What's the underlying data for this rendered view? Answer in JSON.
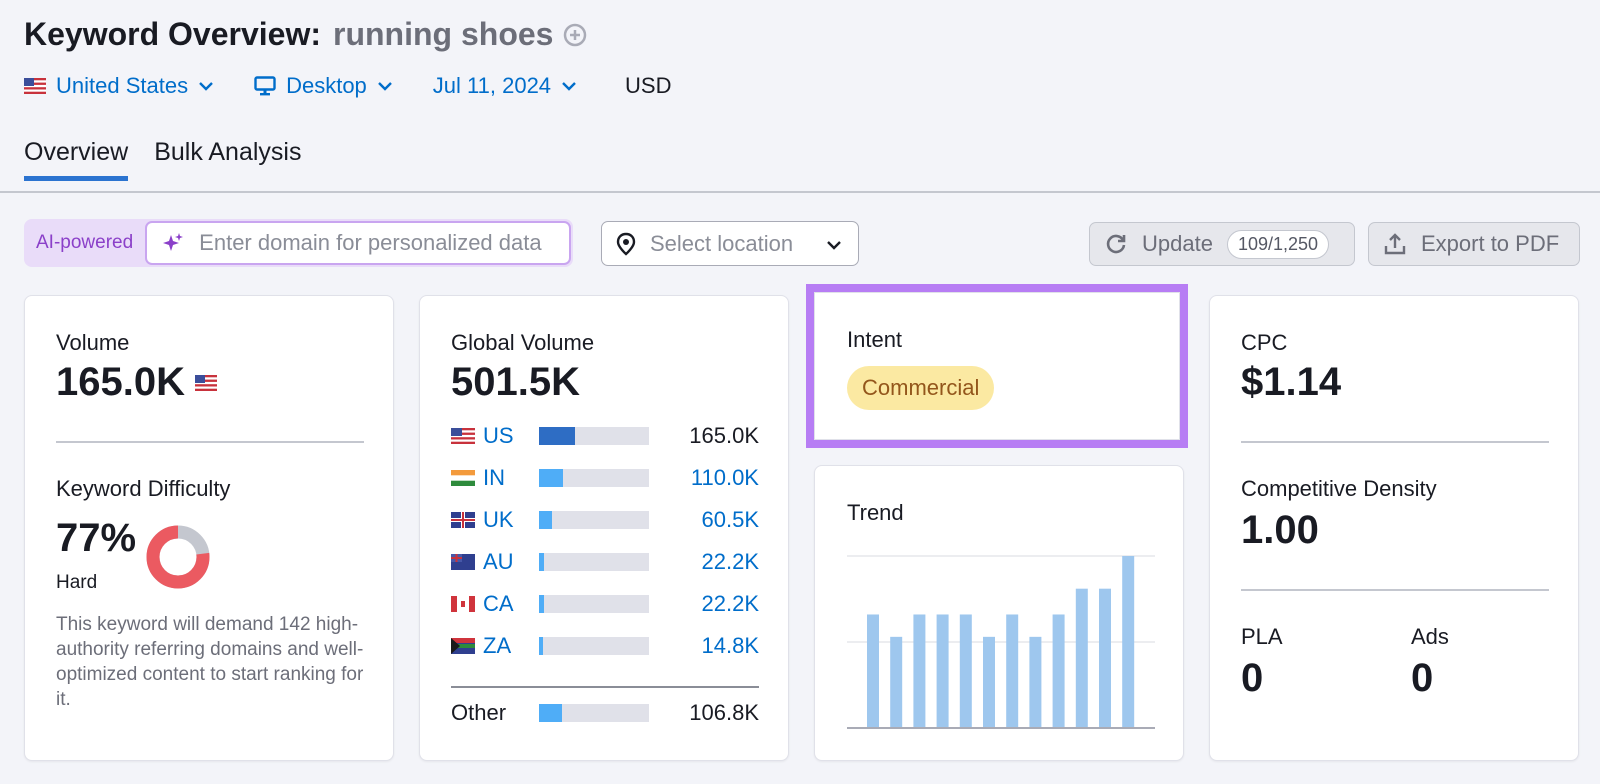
{
  "header": {
    "title": "Keyword Overview:",
    "keyword": "running shoes",
    "filters": {
      "country": "United States",
      "device": "Desktop",
      "date": "Jul 11, 2024",
      "currency": "USD"
    }
  },
  "tabs": [
    {
      "label": "Overview",
      "active": true
    },
    {
      "label": "Bulk Analysis",
      "active": false
    }
  ],
  "toolbar": {
    "ai_label": "AI-powered",
    "domain_placeholder": "Enter domain for personalized data",
    "location_placeholder": "Select location",
    "update_label": "Update",
    "update_count": "109/1,250",
    "export_label": "Export to PDF"
  },
  "volume_card": {
    "label": "Volume",
    "value": "165.0K",
    "kd_label": "Keyword Difficulty",
    "kd_value": "77%",
    "kd_level": "Hard",
    "kd_percent": 77,
    "kd_description": "This keyword will demand 142 high-authority referring domains and well-optimized content to start ranking for it."
  },
  "global_volume_card": {
    "label": "Global Volume",
    "value": "501.5K",
    "countries": [
      {
        "code": "US",
        "value": "165.0K",
        "share": 0.33
      },
      {
        "code": "IN",
        "value": "110.0K",
        "share": 0.22
      },
      {
        "code": "UK",
        "value": "60.5K",
        "share": 0.12
      },
      {
        "code": "AU",
        "value": "22.2K",
        "share": 0.045
      },
      {
        "code": "CA",
        "value": "22.2K",
        "share": 0.045
      },
      {
        "code": "ZA",
        "value": "14.8K",
        "share": 0.03
      }
    ],
    "other_label": "Other",
    "other_value": "106.8K",
    "other_share": 0.21
  },
  "intent_card": {
    "label": "Intent",
    "badge": "Commercial"
  },
  "trend_card": {
    "label": "Trend",
    "bar_color": "#9ec7ee",
    "values": [
      0.66,
      0.53,
      0.66,
      0.66,
      0.66,
      0.53,
      0.66,
      0.53,
      0.66,
      0.81,
      0.81,
      1.0
    ]
  },
  "cpc_card": {
    "cpc_label": "CPC",
    "cpc_value": "$1.14",
    "density_label": "Competitive Density",
    "density_value": "1.00",
    "pla_label": "PLA",
    "pla_value": "0",
    "ads_label": "Ads",
    "ads_value": "0"
  },
  "colors": {
    "accent": "#006dca",
    "intent_outline": "#b77df4",
    "kd_red": "#eb5a61",
    "kd_grey": "#c4c7cf"
  }
}
